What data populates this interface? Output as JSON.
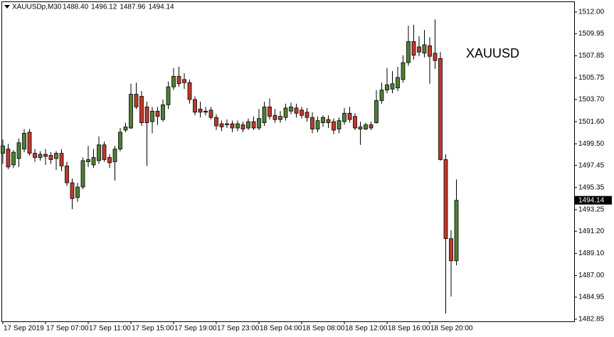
{
  "chart_data": {
    "type": "candlestick",
    "symbol": "XAUUSDp,M30",
    "header_values": [
      {
        "value": 1488.4,
        "label": "1488.40"
      },
      {
        "value": 1496.12,
        "label": "1496.12"
      },
      {
        "value": 1487.96,
        "label": "1487.96"
      },
      {
        "value": 1494.14,
        "label": "1494.14"
      }
    ],
    "watermark": "XAUUSD",
    "up_color": "#4f7f32",
    "down_color": "#c0392b",
    "outline_color": "#000000",
    "ylim": [
      1482.65,
      1513.01
    ],
    "yticks": [
      {
        "value": 1512,
        "label": "1512.00"
      },
      1509.95,
      1507.85,
      1505.75,
      {
        "value": 1503.7,
        "label": "1503.70"
      },
      {
        "value": 1501.6,
        "label": "1501.60"
      },
      {
        "value": 1499.5,
        "label": "1499.50"
      },
      1497.45,
      1495.35,
      1493.25,
      {
        "value": 1491.2,
        "label": "1491.20"
      },
      {
        "value": 1489.1,
        "label": "1489.10"
      },
      {
        "value": 1487,
        "label": "1487.00"
      },
      1484.95,
      1482.85
    ],
    "current_price": 1494.14,
    "categories": [
      "17 Sep 2019",
      null,
      null,
      null,
      null,
      null,
      null,
      null,
      "17 Sep 07:00",
      null,
      null,
      null,
      null,
      null,
      null,
      null,
      "17 Sep 11:00",
      null,
      null,
      null,
      null,
      null,
      null,
      null,
      "17 Sep 15:00",
      null,
      null,
      null,
      null,
      null,
      null,
      null,
      "17 Sep 19:00",
      null,
      null,
      null,
      null,
      null,
      null,
      null,
      "17 Sep 23:00",
      null,
      null,
      null,
      null,
      null,
      null,
      null,
      "18 Sep 04:00",
      null,
      null,
      null,
      null,
      null,
      null,
      null,
      "18 Sep 08:00",
      null,
      null,
      null,
      null,
      null,
      null,
      null,
      "18 Sep 12:00",
      null,
      null,
      null,
      null,
      null,
      null,
      null,
      "18 Sep 16:00",
      null,
      null,
      null,
      null,
      null,
      null,
      null,
      "18 Sep 20:00",
      null,
      null,
      null,
      null,
      null
    ],
    "open": [
      1498.6,
      1499.0,
      1497.5,
      1498.1,
      1499.0,
      1500.6,
      1498.6,
      1498.2,
      1498.5,
      1498.4,
      1498.1,
      1498.6,
      1497.4,
      1495.8,
      1494.4,
      1495.4,
      1497.8,
      1497.5,
      1497.9,
      1499.4,
      1498.2,
      1497.8,
      1499.0,
      1500.8,
      1501.0,
      1504.2,
      1504.0,
      1503.0,
      1501.6,
      1502.6,
      1501.8,
      1503.2,
      1504.9,
      1505.9,
      1505.6,
      1505.3,
      1503.7,
      1502.8,
      1502.6,
      1502.7,
      1502.0,
      1501.4,
      1501.3,
      1501.4,
      1501.0,
      1501.3,
      1501.0,
      1501.6,
      1501.0,
      1501.5,
      1503.0,
      1502.2,
      1501.8,
      1502.0,
      1502.6,
      1502.9,
      1502.7,
      1502.5,
      1502.0,
      1500.9,
      1501.5,
      1501.8,
      1501.6,
      1500.9,
      1501.6,
      1502.4,
      1502.1,
      1500.9,
      1500.9,
      1501.3,
      1501.5,
      1503.6,
      1504.6,
      1504.7,
      1504.8,
      1505.6,
      1507.2,
      1509.2,
      1508.7,
      1508.1,
      1508.8,
      1508.1,
      1507.6,
      1498.0,
      1490.5,
      1488.4
    ],
    "high": [
      1499.9,
      1499.5,
      1498.9,
      1500.0,
      1500.9,
      1500.9,
      1499.0,
      1498.8,
      1499.0,
      1498.7,
      1498.8,
      1499.0,
      1497.8,
      1496.2,
      1495.8,
      1498.2,
      1499.3,
      1499.0,
      1500.2,
      1499.7,
      1498.5,
      1499.3,
      1501.0,
      1501.5,
      1505.2,
      1505.3,
      1504.5,
      1503.5,
      1503.0,
      1503.0,
      1503.7,
      1505.4,
      1506.7,
      1506.8,
      1506.2,
      1505.6,
      1504.0,
      1503.5,
      1503.0,
      1503.0,
      1502.3,
      1501.7,
      1501.8,
      1501.7,
      1501.7,
      1501.6,
      1501.9,
      1502.1,
      1502.8,
      1503.5,
      1503.8,
      1502.8,
      1502.6,
      1503.3,
      1503.4,
      1503.3,
      1503.0,
      1502.9,
      1502.5,
      1502.1,
      1502.2,
      1502.2,
      1501.9,
      1502.0,
      1502.9,
      1503.0,
      1502.4,
      1501.6,
      1501.5,
      1501.6,
      1504.6,
      1505.3,
      1506.7,
      1506.4,
      1506.8,
      1507.9,
      1510.7,
      1510.8,
      1509.7,
      1510.3,
      1509.6,
      1511.3,
      1508.2,
      1498.5,
      1491.3,
      1496.12
    ],
    "low": [
      1497.6,
      1497.1,
      1497.2,
      1497.3,
      1498.7,
      1498.4,
      1497.8,
      1497.9,
      1497.5,
      1497.6,
      1497.0,
      1496.9,
      1495.5,
      1493.3,
      1494.0,
      1495.2,
      1497.3,
      1497.2,
      1497.6,
      1497.8,
      1497.2,
      1496.0,
      1498.8,
      1500.6,
      1500.9,
      1502.8,
      1501.2,
      1497.4,
      1500.5,
      1501.3,
      1501.6,
      1502.8,
      1504.6,
      1504.9,
      1504.7,
      1503.3,
      1502.2,
      1502.0,
      1502.2,
      1501.8,
      1500.8,
      1500.7,
      1501.0,
      1500.6,
      1500.7,
      1500.6,
      1500.8,
      1500.8,
      1500.8,
      1501.2,
      1501.8,
      1501.5,
      1501.5,
      1501.7,
      1502.3,
      1502.0,
      1501.9,
      1501.6,
      1500.5,
      1500.6,
      1501.1,
      1501.0,
      1500.4,
      1500.5,
      1501.3,
      1501.5,
      1500.8,
      1499.4,
      1500.8,
      1500.8,
      1501.4,
      1503.3,
      1504.3,
      1504.3,
      1504.5,
      1505.3,
      1506.9,
      1507.5,
      1507.8,
      1507.7,
      1505.2,
      1506.6,
      1497.9,
      1483.4,
      1485.0,
      1487.96
    ],
    "close": [
      1499.3,
      1497.3,
      1498.7,
      1499.6,
      1500.5,
      1498.6,
      1498.2,
      1498.5,
      1498.3,
      1498.0,
      1498.6,
      1497.4,
      1495.8,
      1494.3,
      1495.4,
      1497.9,
      1498.0,
      1498.2,
      1499.4,
      1498.0,
      1497.7,
      1499.0,
      1500.6,
      1501.1,
      1504.2,
      1503.0,
      1501.5,
      1501.5,
      1502.6,
      1502.1,
      1503.2,
      1504.9,
      1505.9,
      1505.2,
      1505.3,
      1503.7,
      1502.5,
      1502.5,
      1502.5,
      1502.0,
      1501.2,
      1501.1,
      1501.4,
      1501.0,
      1501.4,
      1500.9,
      1501.6,
      1501.0,
      1501.9,
      1503.0,
      1502.1,
      1501.8,
      1502.1,
      1502.9,
      1503.0,
      1502.4,
      1502.2,
      1502.0,
      1500.9,
      1501.7,
      1502.0,
      1501.5,
      1500.8,
      1501.7,
      1502.4,
      1501.8,
      1501.0,
      1501.1,
      1501.3,
      1501.0,
      1503.6,
      1504.6,
      1505.1,
      1505.2,
      1505.8,
      1507.2,
      1509.2,
      1507.9,
      1508.2,
      1508.9,
      1507.8,
      1507.4,
      1498.0,
      1490.5,
      1488.4,
      1494.14
    ]
  }
}
